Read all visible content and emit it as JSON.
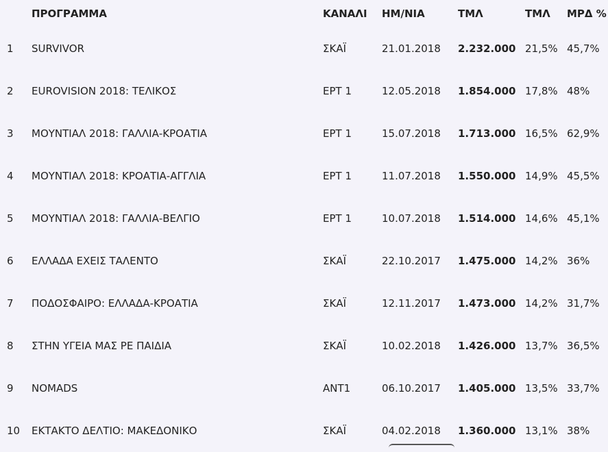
{
  "table": {
    "headers": {
      "rank": "",
      "program": "ΠΡΟΓΡΑΜΜΑ",
      "channel": "ΚΑΝΑΛΙ",
      "date": "ΗΜ/ΝΙΑ",
      "viewers": "ΤΜΛ",
      "share_pct": "ΤΜΛ",
      "mrd_pct": "ΜΡΔ %"
    },
    "rows": [
      {
        "rank": "1",
        "program": "SURVIVOR",
        "channel": "ΣΚΑΪ",
        "date": "21.01.2018",
        "viewers": "2.232.000",
        "share_pct": "21,5%",
        "mrd_pct": "45,7%"
      },
      {
        "rank": "2",
        "program": "EUROVISION 2018: ΤΕΛΙΚΟΣ",
        "channel": "ΕΡΤ 1",
        "date": "12.05.2018",
        "viewers": "1.854.000",
        "share_pct": "17,8%",
        "mrd_pct": "48%"
      },
      {
        "rank": "3",
        "program": "ΜΟΥΝΤΙΑΛ 2018: ΓΑΛΛΙΑ-ΚΡΟΑΤΙΑ",
        "channel": "ΕΡΤ 1",
        "date": "15.07.2018",
        "viewers": "1.713.000",
        "share_pct": "16,5%",
        "mrd_pct": "62,9%"
      },
      {
        "rank": "4",
        "program": "ΜΟΥΝΤΙΑΛ 2018: ΚΡΟΑΤΙΑ-ΑΓΓΛΙΑ",
        "channel": "ΕΡΤ 1",
        "date": "11.07.2018",
        "viewers": "1.550.000",
        "share_pct": "14,9%",
        "mrd_pct": "45,5%"
      },
      {
        "rank": "5",
        "program": "ΜΟΥΝΤΙΑΛ 2018: ΓΑΛΛΙΑ-ΒΕΛΓΙΟ",
        "channel": "ΕΡΤ 1",
        "date": "10.07.2018",
        "viewers": "1.514.000",
        "share_pct": "14,6%",
        "mrd_pct": "45,1%"
      },
      {
        "rank": "6",
        "program": "ΕΛΛΑΔΑ ΕΧΕΙΣ ΤΑΛΕΝΤΟ",
        "channel": "ΣΚΑΪ",
        "date": "22.10.2017",
        "viewers": "1.475.000",
        "share_pct": "14,2%",
        "mrd_pct": "36%"
      },
      {
        "rank": "7",
        "program": "ΠΟΔΟΣΦΑΙΡΟ: ΕΛΛΑΔΑ-ΚΡΟΑΤΙΑ",
        "channel": "ΣΚΑΪ",
        "date": "12.11.2017",
        "viewers": "1.473.000",
        "share_pct": "14,2%",
        "mrd_pct": "31,7%"
      },
      {
        "rank": "8",
        "program": "ΣΤΗΝ ΥΓΕΙΑ ΜΑΣ ΡΕ ΠΑΙΔΙΑ",
        "channel": "ΣΚΑΪ",
        "date": "10.02.2018",
        "viewers": "1.426.000",
        "share_pct": "13,7%",
        "mrd_pct": "36,5%"
      },
      {
        "rank": "9",
        "program": "NOMADS",
        "channel": "ΑΝΤ1",
        "date": "06.10.2017",
        "viewers": "1.405.000",
        "share_pct": "13,5%",
        "mrd_pct": "33,7%"
      },
      {
        "rank": "10",
        "program": "ΕΚΤΑΚΤΟ ΔΕΛΤΙΟ: ΜΑΚΕΔΟΝΙΚΟ",
        "channel": "ΣΚΑΪ",
        "date": "04.02.2018",
        "viewers": "1.360.000",
        "share_pct": "13,1%",
        "mrd_pct": "38%"
      }
    ]
  },
  "colors": {
    "background": "#f4f3fa",
    "text": "#222222"
  }
}
